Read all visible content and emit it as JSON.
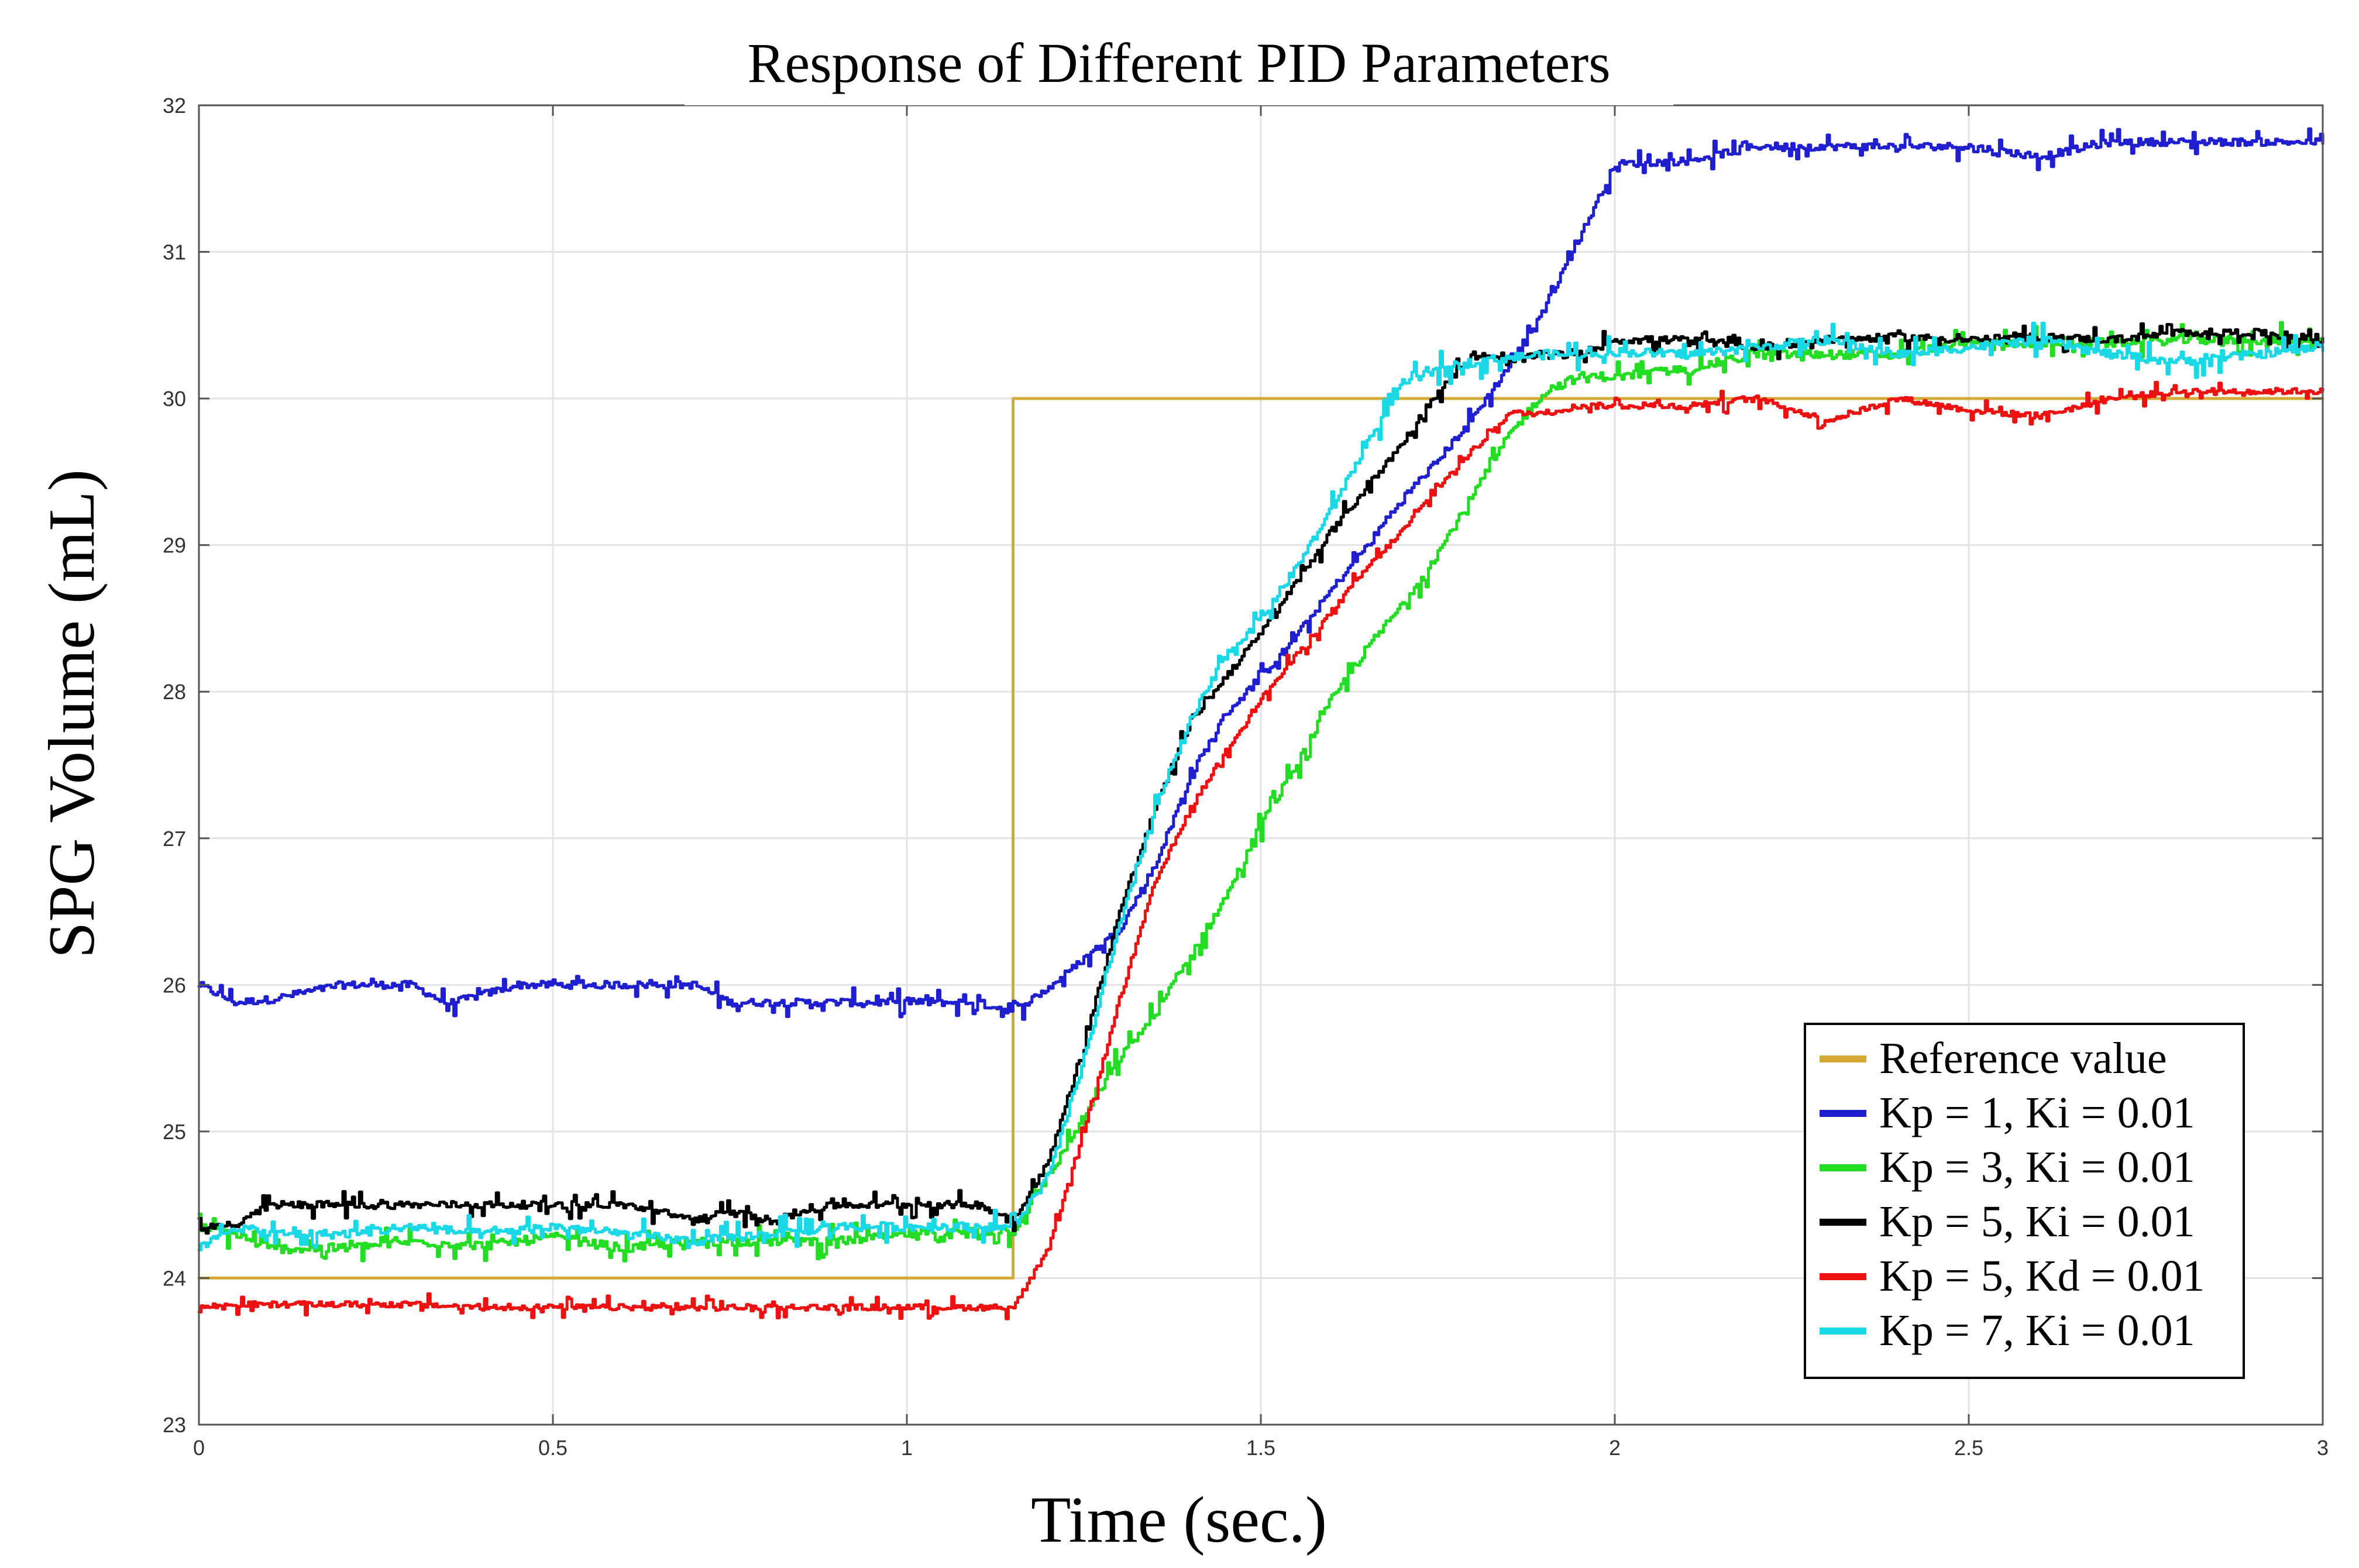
{
  "chart_data": {
    "type": "line",
    "title": "Response of Different PID Parameters",
    "xlabel": "Time (sec.)",
    "ylabel": "SPG Volume (mL)",
    "xlim": [
      0,
      3
    ],
    "ylim": [
      23,
      32
    ],
    "xticks": [
      0,
      0.5,
      1,
      1.5,
      2,
      2.5,
      3
    ],
    "xtick_labels": [
      "0",
      "0.5",
      "1",
      "1.5",
      "2",
      "2.5",
      "3"
    ],
    "yticks": [
      23,
      24,
      25,
      26,
      27,
      28,
      29,
      30,
      31,
      32
    ],
    "ytick_labels": [
      "23",
      "24",
      "25",
      "26",
      "27",
      "28",
      "29",
      "30",
      "31",
      "32"
    ],
    "grid": true,
    "legend_position": "bottom-right",
    "series": [
      {
        "name": "Reference value",
        "color": "#d4a935",
        "step": true,
        "x": [
          0,
          1.15,
          1.15,
          3
        ],
        "y": [
          24,
          24,
          30,
          30
        ]
      },
      {
        "name": "Kp = 1, Ki = 0.01",
        "color": "#1f1fd0",
        "x": [
          0,
          0.05,
          0.1,
          0.2,
          0.3,
          0.35,
          0.45,
          0.5,
          0.6,
          0.7,
          0.75,
          0.8,
          0.9,
          1.0,
          1.1,
          1.15,
          1.2,
          1.25,
          1.3,
          1.35,
          1.4,
          1.45,
          1.5,
          1.55,
          1.6,
          1.65,
          1.7,
          1.75,
          1.8,
          1.85,
          1.9,
          1.95,
          2.0,
          2.1,
          2.2,
          2.3,
          2.4,
          2.5,
          2.6,
          2.7,
          2.8,
          2.9,
          3.0
        ],
        "y": [
          26.0,
          25.88,
          25.9,
          26.0,
          26.0,
          25.87,
          26.0,
          26.0,
          26.0,
          26.0,
          25.88,
          25.88,
          25.88,
          25.88,
          25.88,
          25.82,
          25.98,
          26.18,
          26.38,
          26.82,
          27.42,
          27.85,
          28.1,
          28.38,
          28.7,
          29.0,
          29.32,
          29.58,
          29.88,
          30.22,
          30.62,
          31.1,
          31.6,
          31.62,
          31.72,
          31.72,
          31.72,
          31.72,
          31.65,
          31.75,
          31.75,
          31.75,
          31.75
        ],
        "noise": 0.05
      },
      {
        "name": "Kp = 3, Ki = 0.01",
        "color": "#22dd22",
        "x": [
          0,
          0.05,
          0.1,
          0.2,
          0.3,
          0.4,
          0.5,
          0.6,
          0.7,
          0.8,
          0.9,
          1.0,
          1.1,
          1.15,
          1.2,
          1.25,
          1.3,
          1.35,
          1.4,
          1.45,
          1.5,
          1.55,
          1.6,
          1.65,
          1.7,
          1.75,
          1.8,
          1.85,
          1.9,
          1.95,
          2.0,
          2.1,
          2.2,
          2.3,
          2.4,
          2.5,
          2.6,
          2.7,
          2.8,
          2.9,
          3.0
        ],
        "y": [
          24.35,
          24.3,
          24.2,
          24.2,
          24.25,
          24.22,
          24.28,
          24.2,
          24.25,
          24.25,
          24.25,
          24.3,
          24.32,
          24.32,
          24.7,
          25.1,
          25.5,
          25.8,
          26.2,
          26.6,
          27.1,
          27.5,
          27.95,
          28.3,
          28.6,
          28.95,
          29.35,
          29.75,
          30.05,
          30.15,
          30.15,
          30.2,
          30.3,
          30.3,
          30.3,
          30.38,
          30.38,
          30.38,
          30.4,
          30.4,
          30.4
        ],
        "noise": 0.06
      },
      {
        "name": "Kp = 5, Ki = 0.01",
        "color": "#000000",
        "x": [
          0,
          0.05,
          0.1,
          0.2,
          0.3,
          0.4,
          0.5,
          0.6,
          0.7,
          0.75,
          0.8,
          0.9,
          1.0,
          1.1,
          1.15,
          1.2,
          1.25,
          1.3,
          1.35,
          1.4,
          1.45,
          1.5,
          1.55,
          1.6,
          1.65,
          1.7,
          1.75,
          1.8,
          1.85,
          1.9,
          1.95,
          2.0,
          2.1,
          2.2,
          2.3,
          2.4,
          2.5,
          2.6,
          2.7,
          2.8,
          2.9,
          3.0
        ],
        "y": [
          24.35,
          24.35,
          24.5,
          24.5,
          24.5,
          24.5,
          24.5,
          24.5,
          24.4,
          24.45,
          24.4,
          24.5,
          24.5,
          24.5,
          24.4,
          24.8,
          25.6,
          26.5,
          27.2,
          27.8,
          28.1,
          28.4,
          28.75,
          29.1,
          29.4,
          29.7,
          30.05,
          30.3,
          30.25,
          30.3,
          30.3,
          30.4,
          30.4,
          30.35,
          30.4,
          30.42,
          30.4,
          30.42,
          30.4,
          30.45,
          30.45,
          30.4
        ],
        "noise": 0.05
      },
      {
        "name": "Kp = 5, Kd = 0.01",
        "color": "#ee1111",
        "x": [
          0,
          0.05,
          0.1,
          0.2,
          0.3,
          0.4,
          0.5,
          0.6,
          0.7,
          0.8,
          0.9,
          1.0,
          1.1,
          1.15,
          1.2,
          1.25,
          1.3,
          1.35,
          1.4,
          1.45,
          1.5,
          1.55,
          1.6,
          1.65,
          1.7,
          1.75,
          1.8,
          1.85,
          1.9,
          1.95,
          2.0,
          2.1,
          2.2,
          2.3,
          2.4,
          2.5,
          2.6,
          2.7,
          2.8,
          2.9,
          3.0
        ],
        "y": [
          23.8,
          23.82,
          23.82,
          23.82,
          23.82,
          23.8,
          23.8,
          23.8,
          23.8,
          23.8,
          23.8,
          23.8,
          23.8,
          23.8,
          24.2,
          25.0,
          25.9,
          26.7,
          27.2,
          27.6,
          27.95,
          28.25,
          28.55,
          28.85,
          29.1,
          29.4,
          29.65,
          29.9,
          29.9,
          29.95,
          29.95,
          29.95,
          30.0,
          29.85,
          30.0,
          29.92,
          29.88,
          30.0,
          30.05,
          30.05,
          30.05
        ],
        "noise": 0.04
      },
      {
        "name": "Kp = 7, Ki = 0.01",
        "color": "#1ad8e6",
        "x": [
          0,
          0.05,
          0.1,
          0.2,
          0.3,
          0.4,
          0.5,
          0.6,
          0.7,
          0.8,
          0.9,
          1.0,
          1.1,
          1.15,
          1.2,
          1.25,
          1.3,
          1.35,
          1.4,
          1.45,
          1.5,
          1.55,
          1.6,
          1.65,
          1.7,
          1.75,
          1.8,
          1.85,
          1.9,
          1.95,
          2.0,
          2.1,
          2.2,
          2.3,
          2.4,
          2.5,
          2.6,
          2.7,
          2.8,
          2.9,
          3.0
        ],
        "y": [
          24.2,
          24.35,
          24.3,
          24.3,
          24.35,
          24.3,
          24.35,
          24.3,
          24.25,
          24.3,
          24.35,
          24.35,
          24.35,
          24.35,
          24.7,
          25.5,
          26.4,
          27.2,
          27.8,
          28.25,
          28.5,
          28.85,
          29.25,
          29.7,
          30.1,
          30.2,
          30.25,
          30.28,
          30.3,
          30.3,
          30.32,
          30.3,
          30.35,
          30.4,
          30.3,
          30.35,
          30.4,
          30.3,
          30.25,
          30.3,
          30.35
        ],
        "noise": 0.06
      }
    ]
  }
}
